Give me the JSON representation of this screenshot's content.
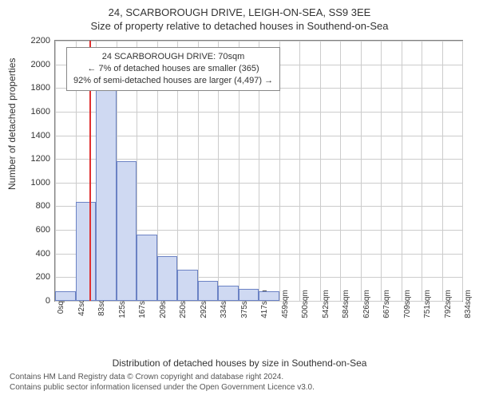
{
  "title_line1": "24, SCARBOROUGH DRIVE, LEIGH-ON-SEA, SS9 3EE",
  "title_line2": "Size of property relative to detached houses in Southend-on-Sea",
  "y_axis_label": "Number of detached properties",
  "x_axis_label": "Distribution of detached houses by size in Southend-on-Sea",
  "chart": {
    "type": "histogram",
    "y_min": 0,
    "y_max": 2200,
    "y_tick_step": 200,
    "x_ticks": [
      "0sqm",
      "42sqm",
      "83sqm",
      "125sqm",
      "167sqm",
      "209sqm",
      "250sqm",
      "292sqm",
      "334sqm",
      "375sqm",
      "417sqm",
      "459sqm",
      "500sqm",
      "542sqm",
      "584sqm",
      "626sqm",
      "667sqm",
      "709sqm",
      "751sqm",
      "792sqm",
      "834sqm"
    ],
    "bars": [
      80,
      840,
      1780,
      1180,
      560,
      380,
      260,
      170,
      130,
      100,
      80,
      0,
      0,
      0,
      0,
      0,
      0,
      0,
      0,
      0
    ],
    "bar_fill": "#cfd9f2",
    "bar_stroke": "#6b82c4",
    "grid_color": "#cccccc",
    "axis_color": "#808080",
    "reference_line": {
      "value_sqm": 70,
      "color": "#e03030"
    },
    "annotation": {
      "line1": "24 SCARBOROUGH DRIVE: 70sqm",
      "line2": "← 7% of detached houses are smaller (365)",
      "line3": "92% of semi-detached houses are larger (4,497) →"
    }
  },
  "footer_line1": "Contains HM Land Registry data © Crown copyright and database right 2024.",
  "footer_line2": "Contains public sector information licensed under the Open Government Licence v3.0."
}
